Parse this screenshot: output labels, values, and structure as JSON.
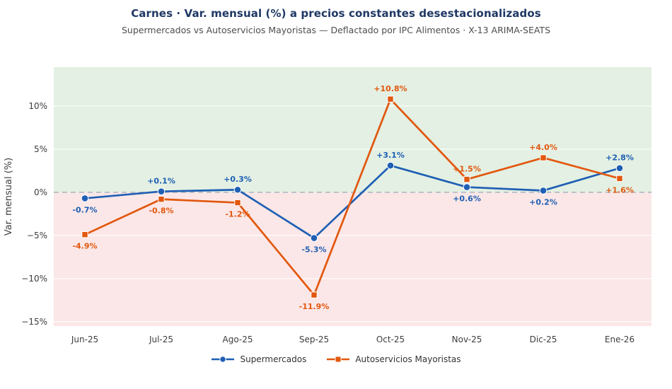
{
  "header": {
    "title": "Carnes · Var. mensual (%) a precios constantes desestacionalizados",
    "subtitle": "Supermercados vs Autoservicios Mayoristas — Deflactado por IPC Alimentos · X-13 ARIMA-SEATS"
  },
  "chart_data": {
    "type": "line",
    "title": "Carnes · Var. mensual (%) a precios constantes desestacionalizados",
    "subtitle": "Supermercados vs Autoservicios Mayoristas — Deflactado por IPC Alimentos · X-13 ARIMA-SEATS",
    "categories": [
      "Jun-25",
      "Jul-25",
      "Ago-25",
      "Sep-25",
      "Oct-25",
      "Nov-25",
      "Dic-25",
      "Ene-26"
    ],
    "series": [
      {
        "name": "Supermercados",
        "color": "#1f5fb4",
        "marker": "circle",
        "values": [
          -0.7,
          0.1,
          0.3,
          -5.3,
          3.1,
          0.6,
          0.2,
          2.8
        ],
        "labels": [
          "-0.7%",
          "+0.1%",
          "+0.3%",
          "-5.3%",
          "+3.1%",
          "+0.6%",
          "+0.2%",
          "+2.8%"
        ],
        "label_pos": [
          "below",
          "above",
          "above",
          "below",
          "above",
          "below",
          "below",
          "above"
        ]
      },
      {
        "name": "Autoservicios Mayoristas",
        "color": "#e2570e",
        "marker": "square",
        "values": [
          -4.9,
          -0.8,
          -1.2,
          -11.9,
          10.8,
          1.5,
          4.0,
          1.6
        ],
        "labels": [
          "-4.9%",
          "-0.8%",
          "-1.2%",
          "-11.9%",
          "+10.8%",
          "+1.5%",
          "+4.0%",
          "+1.6%"
        ],
        "label_pos": [
          "below",
          "below",
          "below",
          "below",
          "above",
          "above",
          "above",
          "below"
        ]
      }
    ],
    "xlabel": "",
    "ylabel": "Var. mensual (%)",
    "ylim": [
      -15.5,
      14.5
    ],
    "yticks": [
      10,
      5,
      0,
      -5,
      -10,
      -15
    ],
    "ytick_labels": [
      "10%",
      "5%",
      "0%",
      "−5%",
      "−10%",
      "−15%"
    ],
    "zero_line": {
      "style": "dashed",
      "color": "#a9b4bf"
    },
    "background": {
      "positive": "#e3f0e3",
      "negative": "#fbe7e7"
    },
    "grid": true,
    "gridline_color": "#ffffff",
    "legend_position": "bottom"
  }
}
